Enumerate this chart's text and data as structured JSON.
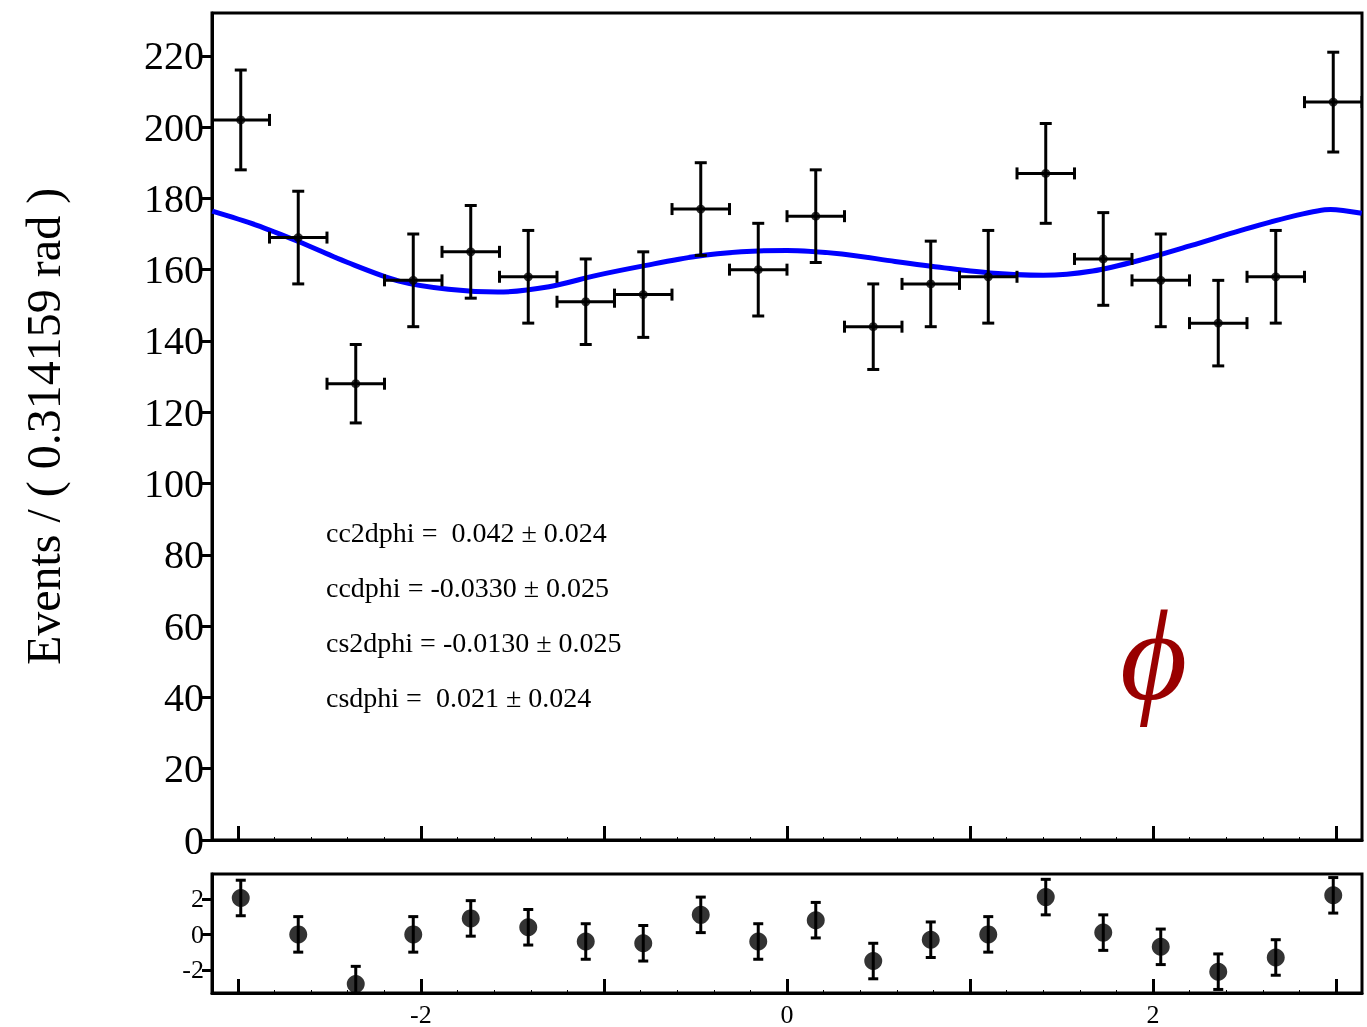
{
  "chart_data": [
    {
      "type": "scatter",
      "ylabel": "Events / ( 0.314159 rad )",
      "xlim": [
        -3.1416,
        3.1416
      ],
      "ylim": [
        0,
        232
      ],
      "xticks": [
        {
          "value": -3,
          "label": null
        },
        {
          "value": -2,
          "label": null
        },
        {
          "value": -1,
          "label": null
        },
        {
          "value": 0,
          "label": null
        },
        {
          "value": 1,
          "label": null
        },
        {
          "value": 2,
          "label": null
        },
        {
          "value": 3,
          "label": null
        }
      ],
      "yticks": [
        0,
        20,
        40,
        60,
        80,
        100,
        120,
        140,
        160,
        180,
        200,
        220
      ],
      "tick_labels": "y",
      "marker": "circle",
      "series": [
        {
          "color": "#000000",
          "x": [
            -2.9845,
            -2.6704,
            -2.3562,
            -2.042,
            -1.7279,
            -1.4137,
            -1.0996,
            -0.7854,
            -0.4712,
            -0.1571,
            0.1571,
            0.4712,
            0.7854,
            1.0996,
            1.4137,
            1.7279,
            2.042,
            2.3562,
            2.6704,
            2.9845
          ],
          "values": [
            202,
            169,
            128,
            157,
            165,
            158,
            151,
            153,
            177,
            160,
            175,
            144,
            156,
            158,
            187,
            163,
            157,
            145,
            158,
            207
          ],
          "errors": [
            14,
            13,
            11,
            13,
            13,
            13,
            12,
            12,
            13,
            13,
            13,
            12,
            12,
            13,
            14,
            13,
            13,
            12,
            13,
            14
          ],
          "xerrors": [
            0.157,
            0.157,
            0.157,
            0.157,
            0.157,
            0.157,
            0.157,
            0.157,
            0.157,
            0.157,
            0.157,
            0.157,
            0.157,
            0.157,
            0.157,
            0.157,
            0.157,
            0.157,
            0.157,
            0.157
          ]
        },
        {
          "type": "line",
          "marker": "none",
          "color": "#0000ff",
          "x": [
            -3.14,
            -2.9,
            -2.67,
            -2.4,
            -2.12,
            -1.85,
            -1.58,
            -1.3,
            -1.04,
            -0.77,
            -0.5,
            -0.25,
            0,
            0.3,
            0.59,
            0.86,
            1.13,
            1.4,
            1.67,
            1.94,
            2.21,
            2.48,
            2.75,
            2.97,
            3.14
          ],
          "values": [
            176.4,
            172.5,
            167.9,
            162,
            156.8,
            154.5,
            153.7,
            155.2,
            158.4,
            161.2,
            163.7,
            165,
            165.4,
            164.4,
            162.3,
            160.5,
            159,
            158.4,
            159.6,
            162.8,
            166.8,
            171,
            174.8,
            176.9,
            175.8
          ]
        }
      ],
      "annotations": [
        "cc2dphi =  0.042 ± 0.024",
        "ccdphi = -0.0330 ± 0.025",
        "cs2dphi = -0.0130 ± 0.025",
        "csdphi =  0.021 ± 0.024",
        "ϕ"
      ]
    },
    {
      "type": "scatter",
      "xlim": [
        -3.1416,
        3.1416
      ],
      "ylim": [
        -3.3,
        3.4
      ],
      "xticks": [
        {
          "value": -3,
          "label": null
        },
        -2,
        {
          "value": -1,
          "label": null
        },
        0,
        {
          "value": 1,
          "label": null
        },
        2,
        {
          "value": 3,
          "label": null
        }
      ],
      "yticks": [
        -2,
        0,
        2
      ],
      "marker": "circle",
      "series": [
        {
          "color": "#000000",
          "x": [
            -2.9845,
            -2.6704,
            -2.3562,
            -2.042,
            -1.7279,
            -1.4137,
            -1.0996,
            -0.7854,
            -0.4712,
            -0.1571,
            0.1571,
            0.4712,
            0.7854,
            1.0996,
            1.4137,
            1.7279,
            2.042,
            2.3562,
            2.6704,
            2.9845
          ],
          "values": [
            2.05,
            0,
            -2.8,
            0,
            0.9,
            0.4,
            -0.4,
            -0.5,
            1.1,
            -0.4,
            0.8,
            -1.5,
            -0.3,
            0,
            2.1,
            0.1,
            -0.7,
            -2.1,
            -1.3,
            2.2
          ],
          "errors": [
            1,
            1,
            1,
            1,
            1,
            1,
            1,
            1,
            1,
            1,
            1,
            1,
            1,
            1,
            1,
            1,
            1,
            1,
            1,
            1
          ]
        }
      ]
    }
  ]
}
